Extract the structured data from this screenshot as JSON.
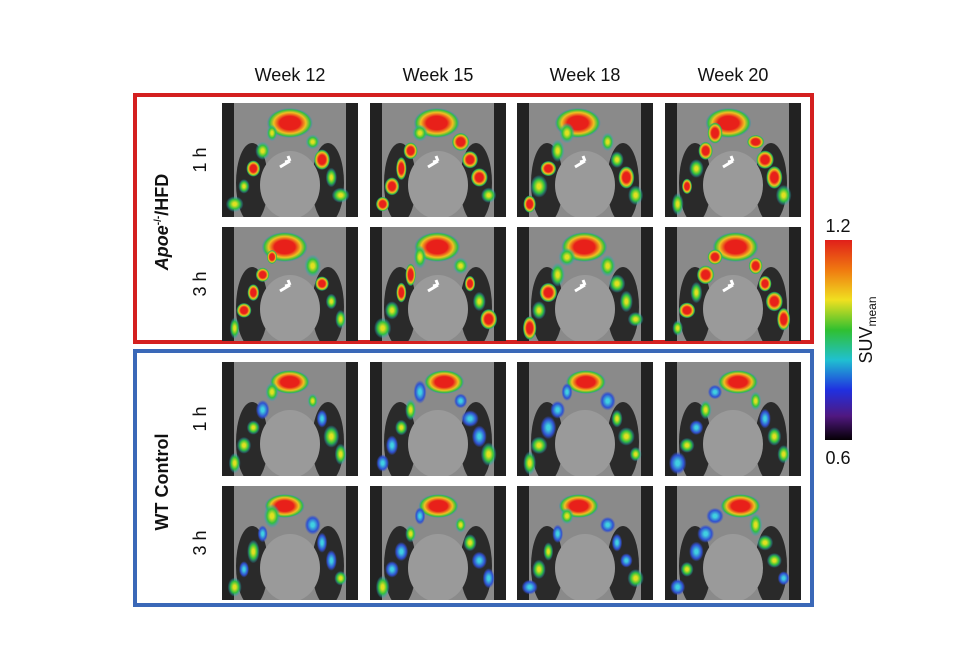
{
  "columns": [
    "Week 12",
    "Week 15",
    "Week 18",
    "Week 20"
  ],
  "groups": [
    {
      "label": {
        "italic": "Apoe",
        "superscript": "-/-",
        "rest": "/HFD"
      },
      "rows": [
        "1 h",
        "3 h"
      ]
    },
    {
      "label": "WT Control",
      "rows": [
        "1 h",
        "3 h"
      ]
    }
  ],
  "colorbar": {
    "max": 1.2,
    "min": 0.6,
    "label": "SUV",
    "label_subscript": "mean"
  }
}
